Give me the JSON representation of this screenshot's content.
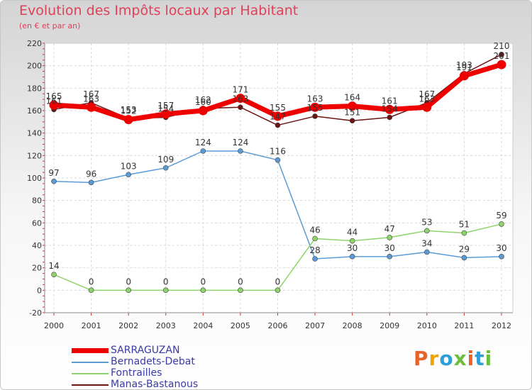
{
  "chart_data": {
    "type": "line",
    "title": "Evolution des Impôts locaux par Habitant",
    "subtitle": "(en € et par an)",
    "x": [
      "2000",
      "2001",
      "2002",
      "2003",
      "2004",
      "2005",
      "2006",
      "2007",
      "2008",
      "2009",
      "2010",
      "2011",
      "2012"
    ],
    "ylim": [
      -20,
      220
    ],
    "yticks": [
      -20,
      0,
      20,
      40,
      60,
      80,
      100,
      120,
      140,
      160,
      180,
      200,
      220
    ],
    "grid": true,
    "series": [
      {
        "name": "Manas-Bastanous",
        "color": "#6b1414",
        "values": [
          161,
          167,
          153,
          154,
          162,
          163,
          147,
          155,
          151,
          154,
          167,
          193,
          210
        ],
        "labels": [
          "161",
          "167",
          "153",
          "154",
          "162",
          "163",
          "147",
          "155",
          "151",
          "154",
          "167",
          "193",
          "210"
        ]
      },
      {
        "name": "Bernadets-Debat",
        "color": "#5b9bd5",
        "values": [
          97,
          96,
          103,
          109,
          124,
          124,
          116,
          28,
          30,
          30,
          34,
          29,
          30
        ],
        "labels": [
          "97",
          "96",
          "103",
          "109",
          "124",
          "124",
          "116",
          "28",
          "30",
          "30",
          "34",
          "29",
          "30"
        ]
      },
      {
        "name": "Fontrailles",
        "color": "#8fd46a",
        "values": [
          14,
          0,
          0,
          0,
          0,
          0,
          0,
          46,
          44,
          47,
          53,
          51,
          59
        ],
        "labels": [
          "14",
          "0",
          "0",
          "0",
          "0",
          "0",
          "0",
          "46",
          "44",
          "47",
          "53",
          "51",
          "59"
        ]
      },
      {
        "name": "SARRAGUZAN",
        "color": "#ee0000",
        "values": [
          165,
          163,
          152,
          157,
          160,
          171,
          155,
          163,
          164,
          161,
          163,
          191,
          201
        ],
        "labels": [
          "165",
          "163",
          "152",
          "157",
          "160",
          "171",
          "155",
          "163",
          "164",
          "161",
          "163",
          "191",
          "201"
        ]
      }
    ],
    "legend": [
      {
        "name": "SARRAGUZAN",
        "color": "#ee0000"
      },
      {
        "name": "Bernadets-Debat",
        "color": "#5b9bd5"
      },
      {
        "name": "Fontrailles",
        "color": "#8fd46a"
      },
      {
        "name": "Manas-Bastanous",
        "color": "#6b1414"
      }
    ]
  },
  "branding": {
    "logo_text": "Proxiti",
    "logo_colors": [
      "#e8622c",
      "#f0a400",
      "#2f9fd8",
      "#6cbf3c",
      "#e8622c",
      "#2f9fd8",
      "#6cbf3c"
    ]
  }
}
